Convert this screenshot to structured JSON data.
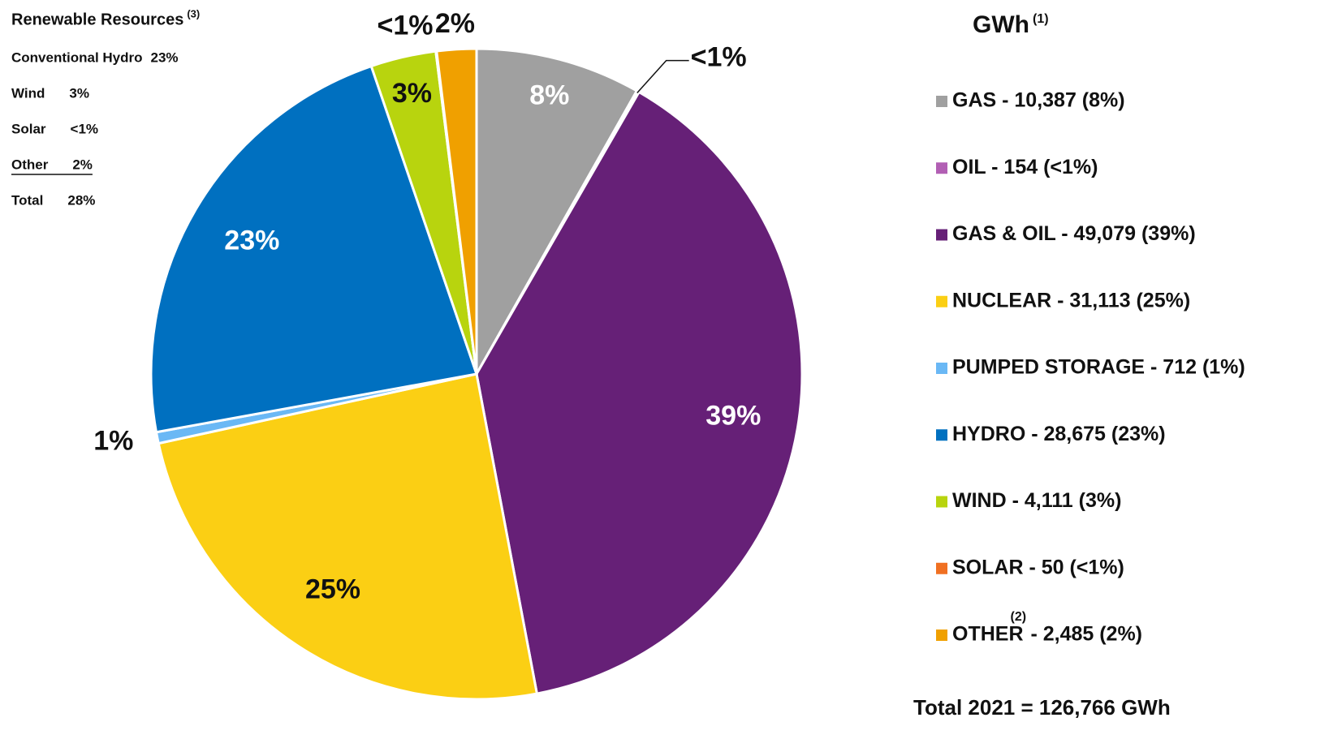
{
  "chart_data": {
    "type": "pie",
    "title": "GWh",
    "title_note": "(1)",
    "categories": [
      "GAS",
      "OIL",
      "GAS & OIL",
      "NUCLEAR",
      "PUMPED STORAGE",
      "HYDRO",
      "WIND",
      "SOLAR",
      "OTHER"
    ],
    "values": [
      10387,
      154,
      49079,
      31113,
      712,
      28675,
      4111,
      50,
      2485
    ],
    "value_labels": [
      "8%",
      "<1%",
      "39%",
      "25%",
      "1%",
      "23%",
      "3%",
      "<1%",
      "2%"
    ],
    "colors": [
      "#a0a0a0",
      "#b25fb4",
      "#662077",
      "#fbcf14",
      "#6ab8f5",
      "#0070c0",
      "#b8d40e",
      "#f07022",
      "#f0a000"
    ],
    "legend_labels": [
      "GAS - 10,387 (8%)",
      "OIL - 154 (<1%)",
      "GAS & OIL - 49,079 (39%)",
      "NUCLEAR - 31,113 (25%)",
      "PUMPED STORAGE - 712 (1%)",
      "HYDRO - 28,675 (23%)",
      "WIND - 4,111 (3%)",
      "SOLAR - 50 (<1%)",
      [
        "OTHER",
        "(2)",
        " - 2,485 (2%)"
      ]
    ],
    "total_label": "Total 2021 = 126,766 GWh",
    "renewables": {
      "title": "Renewable Resources",
      "title_note": "(3)",
      "rows": [
        [
          "Conventional Hydro",
          "23%"
        ],
        [
          "Wind",
          "3%"
        ],
        [
          "Solar",
          "<1%"
        ],
        [
          "Other",
          "2%"
        ],
        [
          "Total",
          "28%"
        ]
      ],
      "underlined_row": 3
    }
  }
}
